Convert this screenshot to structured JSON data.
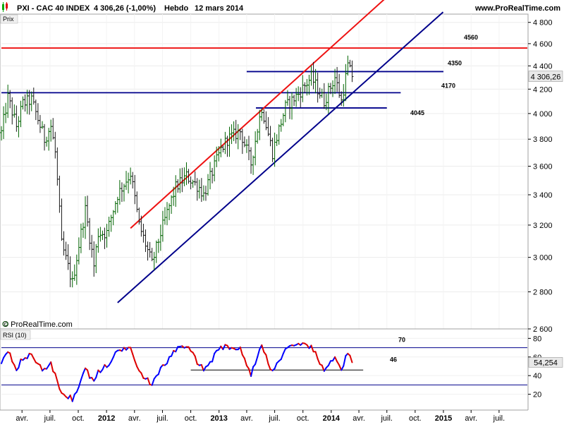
{
  "header": {
    "instrument": "PXI - CAC 40 INDEX",
    "quote": "4 306,26 (-1,00%)",
    "period": "Hebdo",
    "date": "12 mars 2014",
    "site": "www.ProRealTime.com"
  },
  "price_panel": {
    "label": "Prix",
    "watermark": "© ProRealTime.com",
    "last_price_label": "4 306,26"
  },
  "rsi_panel": {
    "label": "RSI (10)",
    "last_value_label": "54,254"
  },
  "colors": {
    "up_bar": "#006400",
    "down_bar": "#1a1a1a",
    "red_line": "#ee1111",
    "blue_line": "#00008b",
    "rsi_red": "#dd0000",
    "rsi_blue": "#0000ff",
    "badge_bg": "#e8e8e8"
  },
  "chart_data": [
    {
      "type": "line",
      "name": "price",
      "y_scale": "log",
      "ylim": [
        2600,
        4880
      ],
      "yticks": [
        2600,
        2800,
        3000,
        3200,
        3400,
        3600,
        3800,
        4000,
        4200,
        4400,
        4600,
        4800
      ],
      "ytick_labels": [
        "2 600",
        "2 800",
        "3 000",
        "3 200",
        "3 400",
        "3 600",
        "3 800",
        "4 000",
        "4 200",
        "4 400",
        "4 600",
        "4 800"
      ],
      "x_labels": [
        "avr.",
        "juil.",
        "oct.",
        "2012",
        "avr.",
        "juil.",
        "oct.",
        "2013",
        "avr.",
        "juil.",
        "oct.",
        "2014",
        "avr.",
        "juil.",
        "oct.",
        "2015",
        "avr.",
        "juil."
      ],
      "x_label_bold": [
        false,
        false,
        false,
        true,
        false,
        false,
        false,
        true,
        false,
        false,
        false,
        true,
        false,
        false,
        false,
        true,
        false,
        false
      ],
      "x_range": [
        "2011-01-24",
        "2015-10-01"
      ],
      "x_ticks": [
        "2011-04-01",
        "2011-07-01",
        "2011-10-01",
        "2012-01-01",
        "2012-04-01",
        "2012-07-01",
        "2012-10-01",
        "2013-01-01",
        "2013-04-01",
        "2013-07-01",
        "2013-10-01",
        "2014-01-01",
        "2014-04-01",
        "2014-07-01",
        "2014-10-01",
        "2015-01-01",
        "2015-04-01",
        "2015-07-01"
      ],
      "weekly_close_anchors": [
        [
          "2011-01-24",
          3850
        ],
        [
          "2011-02-14",
          4130
        ],
        [
          "2011-03-14",
          3900
        ],
        [
          "2011-04-04",
          4080
        ],
        [
          "2011-05-02",
          4110
        ],
        [
          "2011-06-13",
          3800
        ],
        [
          "2011-07-04",
          3900
        ],
        [
          "2011-07-18",
          3700
        ],
        [
          "2011-08-08",
          3080
        ],
        [
          "2011-09-12",
          2850
        ],
        [
          "2011-09-26",
          3000
        ],
        [
          "2011-10-24",
          3300
        ],
        [
          "2011-11-21",
          2950
        ],
        [
          "2011-12-05",
          3150
        ],
        [
          "2012-01-02",
          3150
        ],
        [
          "2012-02-06",
          3400
        ],
        [
          "2012-03-19",
          3550
        ],
        [
          "2012-04-16",
          3200
        ],
        [
          "2012-05-28",
          2960
        ],
        [
          "2012-06-25",
          3150
        ],
        [
          "2012-08-13",
          3450
        ],
        [
          "2012-09-17",
          3530
        ],
        [
          "2012-10-29",
          3450
        ],
        [
          "2012-11-12",
          3400
        ],
        [
          "2013-01-07",
          3720
        ],
        [
          "2013-01-28",
          3800
        ],
        [
          "2013-03-11",
          3860
        ],
        [
          "2013-04-15",
          3620
        ],
        [
          "2013-05-20",
          4050
        ],
        [
          "2013-06-24",
          3700
        ],
        [
          "2013-08-05",
          4050
        ],
        [
          "2013-09-16",
          4160
        ],
        [
          "2013-10-28",
          4300
        ],
        [
          "2013-12-09",
          4100
        ],
        [
          "2014-01-13",
          4300
        ],
        [
          "2014-02-03",
          4100
        ],
        [
          "2014-02-24",
          4400
        ],
        [
          "2014-03-10",
          4306.26
        ]
      ],
      "last_close": 4306.26
    },
    {
      "type": "line",
      "name": "trendlines",
      "channel_upper": {
        "from": [
          "2012-03-19",
          3180
        ],
        "to": [
          "2014-07-01",
          5050
        ]
      },
      "channel_lower": {
        "from": [
          "2012-02-06",
          2740
        ],
        "to": [
          "2014-12-31",
          4900
        ]
      },
      "horizontal_levels": [
        {
          "value": 4560,
          "label": "4560",
          "from": "2011-01-24",
          "to": "2015-10-01",
          "color": "red"
        },
        {
          "value": 4350,
          "label": "4350",
          "from": "2013-04-01",
          "to": "2015-01-01",
          "color": "blue"
        },
        {
          "value": 4170,
          "label": "4170",
          "from": "2011-01-24",
          "to": "2014-08-15",
          "color": "blue"
        },
        {
          "value": 4045,
          "label": "4045",
          "from": "2013-05-01",
          "to": "2014-07-01",
          "color": "blue"
        }
      ]
    },
    {
      "type": "line",
      "name": "RSI (10)",
      "ylim": [
        0,
        100
      ],
      "yticks": [
        0,
        20,
        40,
        60,
        80
      ],
      "levels": [
        {
          "value": 70,
          "label": "70"
        },
        {
          "value": 46,
          "label": "46",
          "from": "2012-10-01",
          "to": "2014-04-15"
        },
        {
          "value": 30
        }
      ],
      "rsi_anchors": [
        [
          "2011-01-24",
          55
        ],
        [
          "2011-02-14",
          68
        ],
        [
          "2011-03-14",
          48
        ],
        [
          "2011-04-04",
          58
        ],
        [
          "2011-05-02",
          62
        ],
        [
          "2011-06-13",
          45
        ],
        [
          "2011-07-04",
          52
        ],
        [
          "2011-07-18",
          40
        ],
        [
          "2011-08-08",
          22
        ],
        [
          "2011-09-12",
          15
        ],
        [
          "2011-09-26",
          22
        ],
        [
          "2011-10-24",
          48
        ],
        [
          "2011-11-21",
          32
        ],
        [
          "2011-12-05",
          45
        ],
        [
          "2012-01-02",
          50
        ],
        [
          "2012-02-06",
          66
        ],
        [
          "2012-03-19",
          72
        ],
        [
          "2012-04-16",
          45
        ],
        [
          "2012-05-28",
          30
        ],
        [
          "2012-06-25",
          46
        ],
        [
          "2012-08-13",
          68
        ],
        [
          "2012-09-17",
          72
        ],
        [
          "2012-10-29",
          52
        ],
        [
          "2012-11-12",
          46
        ],
        [
          "2013-01-07",
          70
        ],
        [
          "2013-01-28",
          72
        ],
        [
          "2013-03-11",
          68
        ],
        [
          "2013-04-15",
          42
        ],
        [
          "2013-05-20",
          72
        ],
        [
          "2013-06-24",
          44
        ],
        [
          "2013-08-05",
          68
        ],
        [
          "2013-09-16",
          72
        ],
        [
          "2013-10-28",
          72
        ],
        [
          "2013-12-09",
          44
        ],
        [
          "2014-01-13",
          62
        ],
        [
          "2014-02-03",
          46
        ],
        [
          "2014-02-24",
          65
        ],
        [
          "2014-03-10",
          54.254
        ]
      ],
      "last_value": 54.254
    }
  ]
}
